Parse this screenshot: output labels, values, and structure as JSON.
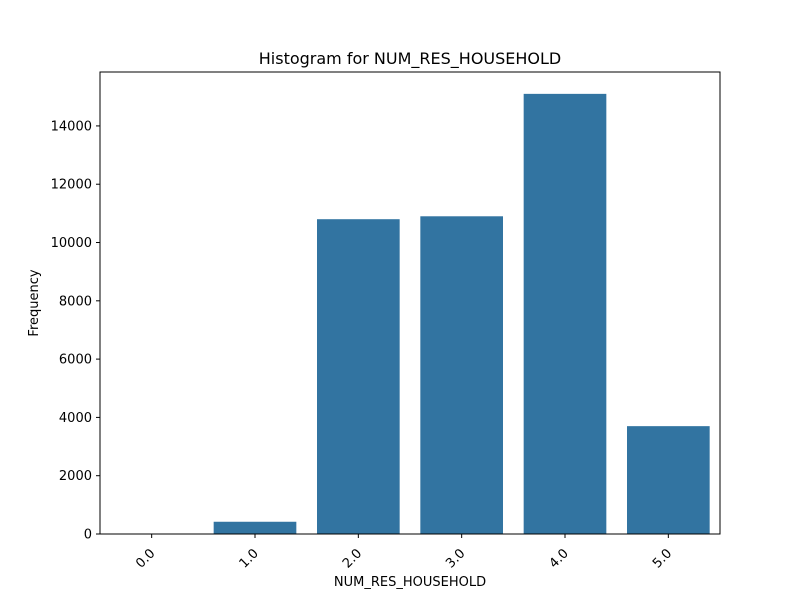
{
  "chart_data": {
    "type": "bar",
    "title": "Histogram for NUM_RES_HOUSEHOLD",
    "xlabel": "NUM_RES_HOUSEHOLD",
    "ylabel": "Frequency",
    "categories": [
      "0.0",
      "1.0",
      "2.0",
      "3.0",
      "4.0",
      "5.0"
    ],
    "values": [
      0,
      420,
      10800,
      10900,
      15100,
      3700
    ],
    "ylim": [
      0,
      15850
    ],
    "yticks": [
      0,
      2000,
      4000,
      6000,
      8000,
      10000,
      12000,
      14000
    ],
    "ytick_labels": [
      "0",
      "2000",
      "4000",
      "6000",
      "8000",
      "10000",
      "12000",
      "14000"
    ],
    "bar_color": "#3274a1",
    "grid": false,
    "legend": "none"
  }
}
